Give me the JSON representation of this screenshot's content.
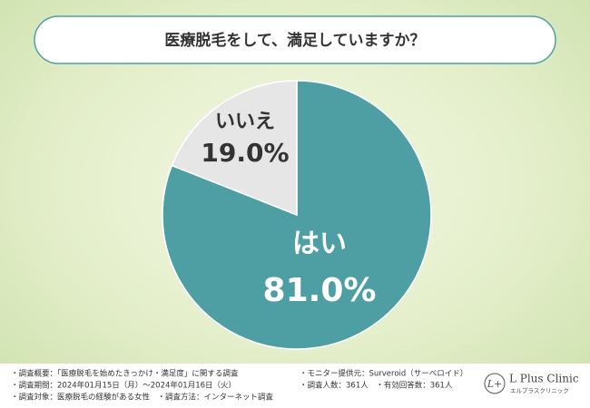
{
  "chart_data": {
    "type": "pie",
    "title": "医療脱毛をして、満足していますか？",
    "categories": [
      "はい",
      "いいえ"
    ],
    "values": [
      81.0,
      19.0
    ],
    "value_labels": [
      "81.0%",
      "19.0%"
    ],
    "colors": [
      "#4e9fa3",
      "#e6e6e6"
    ]
  },
  "notes": [
    "・調査概要：「医療脱毛を始めたきっかけ・満足度」に関する調査",
    "・調査期間：2024年01月15日（月）～2024年01月16日（火）",
    "・調査対象：医療脱毛の経験がある女性　・調査方法：インターネット調査",
    "・モニター提供元：Surveroid（サーベロイド）",
    "・調査人数：361人　・有効回答数：361人"
  ],
  "logo": {
    "name": "L Plus Clinic",
    "sub": "エルプラスクリニック"
  }
}
